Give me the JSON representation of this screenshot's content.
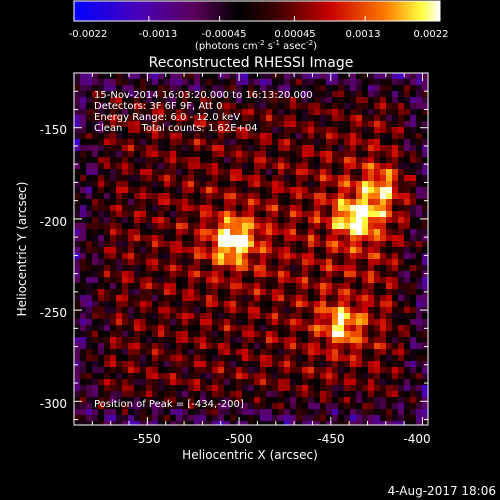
{
  "colorbar": {
    "ticks": [
      "-0.0022",
      "-0.0013",
      "-0.00045",
      "0.00045",
      "0.0013",
      "0.0022"
    ],
    "units_prefix": "(photons cm",
    "units_exp1": "-2",
    "units_mid1": " s",
    "units_exp2": "-1",
    "units_mid2": " asec",
    "units_exp3": "-2",
    "units_suffix": ")"
  },
  "chart_data": {
    "type": "heatmap",
    "title": "Reconstructed RHESSI Image",
    "xlabel": "Heliocentric X (arcsec)",
    "ylabel": "Heliocentric Y (arcsec)",
    "xlim": [
      -590,
      -397
    ],
    "ylim": [
      -313,
      -120
    ],
    "xticks": [
      -550,
      -500,
      -450,
      -400
    ],
    "yticks": [
      -150,
      -200,
      -250,
      -300
    ],
    "clim": [
      -0.0022,
      0.0022
    ],
    "colormap": "rhessi-blue-red-yellow-white",
    "sources": [
      {
        "x": -503,
        "y": -212,
        "peak": 1.0
      },
      {
        "x": -436,
        "y": -200,
        "peak": 0.85
      },
      {
        "x": -444,
        "y": -258,
        "peak": 0.75
      },
      {
        "x": -423,
        "y": -184,
        "peak": 0.55
      }
    ],
    "annotations": {
      "time": "15-Nov-2014 16:03:20.000 to 16:13:20.000",
      "detectors": "Detectors: 3F 6F 9F, Att 0",
      "energy": "Energy Range: 6.0 - 12.0 keV",
      "method": "Clean      Total counts: 1.62E+04",
      "peak": "Position of Peak = [-434,-200]"
    }
  },
  "footer": {
    "date": "4-Aug-2017 18:06"
  }
}
